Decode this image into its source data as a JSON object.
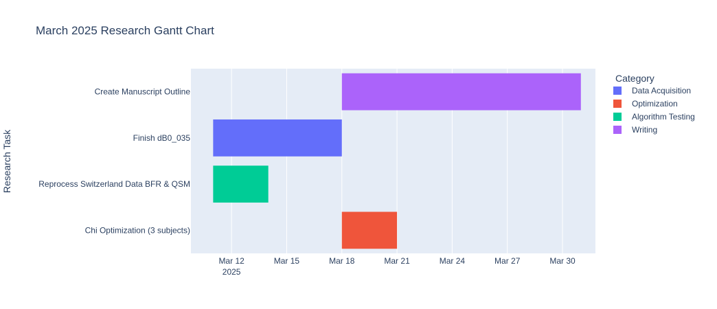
{
  "chart_data": {
    "type": "bar",
    "orientation": "horizontal",
    "title": "March 2025 Research Gantt Chart",
    "xlabel": "",
    "ylabel": "Research Task",
    "x_axis": {
      "type": "date",
      "range": [
        "2025-03-09T19:00",
        "2025-03-31T19:00"
      ],
      "tick_labels": [
        "Mar 12",
        "Mar 15",
        "Mar 18",
        "Mar 21",
        "Mar 24",
        "Mar 27",
        "Mar 30"
      ],
      "tick_dates": [
        "2025-03-12",
        "2025-03-15",
        "2025-03-18",
        "2025-03-21",
        "2025-03-24",
        "2025-03-27",
        "2025-03-30"
      ],
      "year_label": "2025",
      "grid": true
    },
    "categories": [
      "Create Manuscript Outline",
      "Finish dB0_035",
      "Reprocess Switzerland Data BFR & QSM",
      "Chi Optimization (3 subjects)"
    ],
    "tasks": [
      {
        "task": "Create Manuscript Outline",
        "start": "2025-03-18",
        "end": "2025-03-31",
        "category": "Writing"
      },
      {
        "task": "Finish dB0_035",
        "start": "2025-03-11",
        "end": "2025-03-18",
        "category": "Data Acquisition"
      },
      {
        "task": "Reprocess Switzerland Data BFR & QSM",
        "start": "2025-03-11",
        "end": "2025-03-14",
        "category": "Algorithm Testing"
      },
      {
        "task": "Chi Optimization (3 subjects)",
        "start": "2025-03-18",
        "end": "2025-03-21",
        "category": "Optimization"
      }
    ],
    "legend": {
      "title": "Category",
      "placement": "right",
      "items": [
        {
          "name": "Data Acquisition",
          "color": "#636efa"
        },
        {
          "name": "Optimization",
          "color": "#ef553b"
        },
        {
          "name": "Algorithm Testing",
          "color": "#00cc96"
        },
        {
          "name": "Writing",
          "color": "#ab63fa"
        }
      ]
    },
    "colors": {
      "plot_background": "#e5ecf6",
      "grid": "#ffffff",
      "text": "#2a3f5f"
    }
  }
}
